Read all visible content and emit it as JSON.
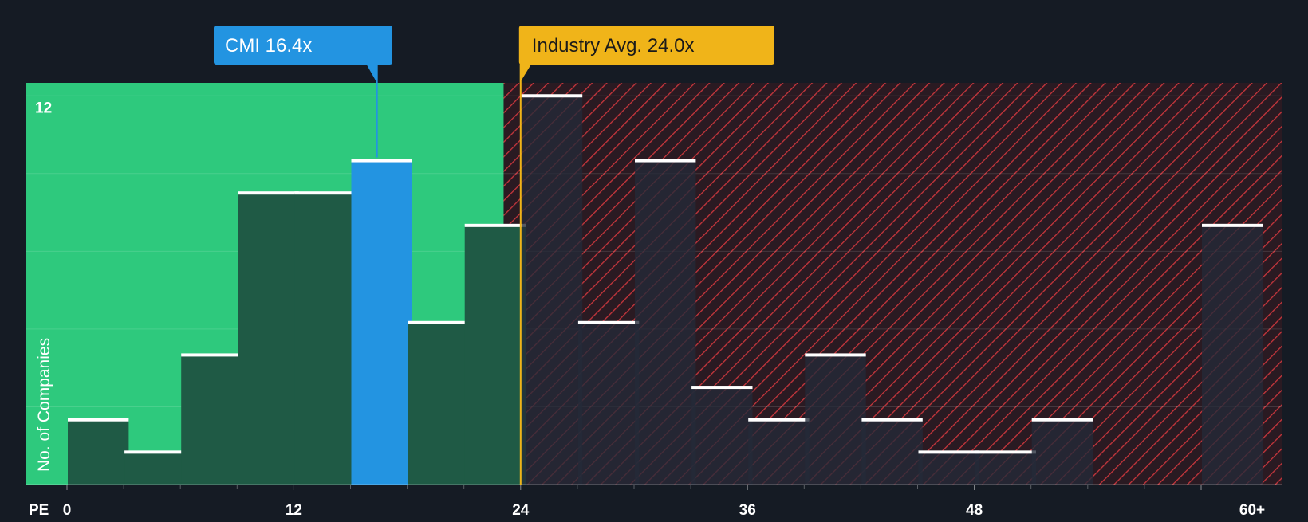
{
  "colors": {
    "background": "#151b24",
    "below_zone": "#2ec97d",
    "above_zone": "#2a1a22",
    "hatch": "#c8363c",
    "bar_below": "#1f5a45",
    "bar_above": "#242a38",
    "bar_highlight": "#2394e1",
    "bar_cap": "#ffffff",
    "company_label_bg": "#2394e1",
    "industry_label_bg": "#f0b419",
    "axis_text": "#ffffff"
  },
  "chart_data": {
    "type": "bar",
    "xlabel": "PE",
    "ylabel": "No. of Companies",
    "bin_width": 3.35,
    "ylim": [
      0,
      12.4
    ],
    "y_ticks": [
      12
    ],
    "x_ticks": [
      {
        "value": 0,
        "label": "0"
      },
      {
        "value": 12,
        "label": "12"
      },
      {
        "value": 24,
        "label": "24"
      },
      {
        "value": 36,
        "label": "36"
      },
      {
        "value": 48,
        "label": "48"
      },
      {
        "value": 60,
        "label": "60+"
      }
    ],
    "bins": [
      {
        "start": 0.0,
        "count": 2
      },
      {
        "start": 3.0,
        "count": 1
      },
      {
        "start": 6.0,
        "count": 4
      },
      {
        "start": 9.0,
        "count": 9
      },
      {
        "start": 12.0,
        "count": 9
      },
      {
        "start": 15.0,
        "count": 10,
        "highlight": true
      },
      {
        "start": 18.0,
        "count": 5
      },
      {
        "start": 21.0,
        "count": 8
      },
      {
        "start": 24.0,
        "count": 12
      },
      {
        "start": 27.0,
        "count": 5
      },
      {
        "start": 30.0,
        "count": 10
      },
      {
        "start": 33.0,
        "count": 3
      },
      {
        "start": 36.0,
        "count": 2
      },
      {
        "start": 39.0,
        "count": 4
      },
      {
        "start": 42.0,
        "count": 2
      },
      {
        "start": 45.0,
        "count": 1
      },
      {
        "start": 48.0,
        "count": 1
      },
      {
        "start": 51.0,
        "count": 2
      },
      {
        "start": 60.0,
        "count": 8
      }
    ],
    "company": {
      "ticker": "CMI",
      "value": 16.4,
      "label": "CMI 16.4x"
    },
    "industry": {
      "value": 24.0,
      "label": "Industry Avg. 24.0x"
    },
    "zone_split": 23.1
  }
}
